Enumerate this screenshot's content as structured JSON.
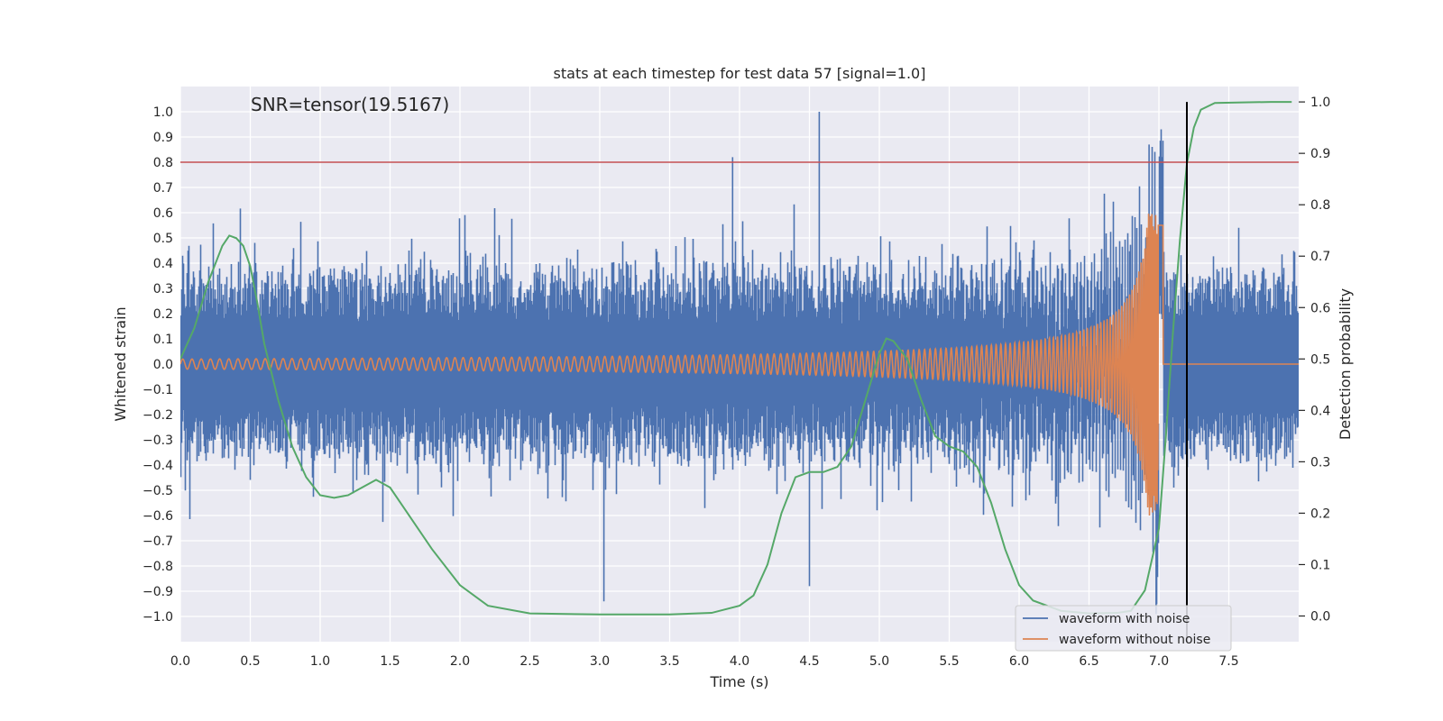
{
  "chart_data": {
    "type": "line",
    "title": "stats at each timestep for test data 57 [signal=1.0]",
    "xlabel": "Time (s)",
    "ylabel": "Whitened strain",
    "ylabel_right": "Detection probability",
    "annotation": "SNR=tensor(19.5167)",
    "xlim": [
      0.0,
      8.0
    ],
    "ylim": [
      -1.1,
      1.1
    ],
    "ylim_right": [
      -0.05,
      1.03
    ],
    "x_ticks": [
      0.0,
      0.5,
      1.0,
      1.5,
      2.0,
      2.5,
      3.0,
      3.5,
      4.0,
      4.5,
      5.0,
      5.5,
      6.0,
      6.5,
      7.0,
      7.5
    ],
    "x_tick_labels": [
      "0.0",
      "0.5",
      "1.0",
      "1.5",
      "2.0",
      "2.5",
      "3.0",
      "3.5",
      "4.0",
      "4.5",
      "5.0",
      "5.5",
      "6.0",
      "6.5",
      "7.0",
      "7.5"
    ],
    "y_ticks": [
      1.0,
      0.9,
      0.8,
      0.7,
      0.6,
      0.5,
      0.4,
      0.3,
      0.2,
      0.1,
      0.0,
      -0.1,
      -0.2,
      -0.3,
      -0.4,
      -0.5,
      -0.6,
      -0.7,
      -0.8,
      -0.9,
      -1.0
    ],
    "y_tick_labels": [
      "1.0",
      "0.9",
      "0.8",
      "0.7",
      "0.6",
      "0.5",
      "0.4",
      "0.3",
      "0.2",
      "0.1",
      "0.0",
      "−0.1",
      "−0.2",
      "−0.3",
      "−0.4",
      "−0.5",
      "−0.6",
      "−0.7",
      "−0.8",
      "−0.9",
      "−1.0"
    ],
    "y_right_ticks": [
      1.0,
      0.9,
      0.8,
      0.7,
      0.6,
      0.5,
      0.4,
      0.3,
      0.2,
      0.1,
      0.0
    ],
    "y_right_tick_labels": [
      "1.0",
      "0.9",
      "0.8",
      "0.7",
      "0.6",
      "0.5",
      "0.4",
      "0.3",
      "0.2",
      "0.1",
      "0.0"
    ],
    "threshold": {
      "y": 0.8,
      "color": "#c44e52"
    },
    "marker_line": {
      "x": 7.2,
      "color": "#000000"
    },
    "legend": {
      "position": "lower-right",
      "entries": [
        {
          "name": "waveform with noise",
          "color": "#4c72b0"
        },
        {
          "name": "waveform without noise",
          "color": "#dd8452"
        }
      ]
    },
    "series": [
      {
        "name": "waveform with noise",
        "color": "#4c72b0",
        "axis": "left",
        "description": "noise-dominated strain, typical envelope about +/-0.35 with spikes",
        "typical_amplitude": 0.35,
        "peaks": [
          {
            "x": 3.95,
            "y": 0.82
          },
          {
            "x": 4.57,
            "y": 1.0
          },
          {
            "x": 6.93,
            "y": 0.87
          },
          {
            "x": 3.03,
            "y": -0.94
          },
          {
            "x": 4.5,
            "y": -0.88
          },
          {
            "x": 6.98,
            "y": -0.99
          }
        ]
      },
      {
        "name": "waveform without noise",
        "color": "#dd8452",
        "axis": "left",
        "description": "chirp signal increasing in frequency and amplitude until merger near t=7.0",
        "start_amplitude": 0.02,
        "peak_amplitude": 0.6,
        "merger_time": 7.0,
        "start_frequency_hz": 15,
        "end_frequency_hz": 90
      },
      {
        "name": "detection probability",
        "color": "#55a868",
        "axis": "right",
        "x": [
          0.0,
          0.1,
          0.2,
          0.3,
          0.35,
          0.4,
          0.45,
          0.5,
          0.55,
          0.6,
          0.7,
          0.8,
          0.9,
          1.0,
          1.1,
          1.2,
          1.3,
          1.4,
          1.5,
          1.6,
          1.8,
          2.0,
          2.2,
          2.5,
          3.0,
          3.5,
          3.8,
          4.0,
          4.1,
          4.2,
          4.3,
          4.4,
          4.5,
          4.6,
          4.7,
          4.8,
          4.9,
          5.0,
          5.05,
          5.1,
          5.2,
          5.3,
          5.4,
          5.5,
          5.6,
          5.7,
          5.8,
          5.9,
          6.0,
          6.1,
          6.3,
          6.5,
          6.7,
          6.8,
          6.9,
          7.0,
          7.05,
          7.1,
          7.15,
          7.2,
          7.25,
          7.3,
          7.4,
          7.6,
          7.8,
          7.95
        ],
        "values": [
          0.5,
          0.56,
          0.65,
          0.72,
          0.74,
          0.735,
          0.72,
          0.68,
          0.61,
          0.53,
          0.42,
          0.33,
          0.27,
          0.235,
          0.23,
          0.235,
          0.25,
          0.265,
          0.25,
          0.21,
          0.13,
          0.06,
          0.02,
          0.005,
          0.003,
          0.003,
          0.006,
          0.02,
          0.04,
          0.1,
          0.2,
          0.27,
          0.28,
          0.28,
          0.29,
          0.33,
          0.42,
          0.51,
          0.54,
          0.535,
          0.5,
          0.42,
          0.35,
          0.33,
          0.32,
          0.29,
          0.22,
          0.13,
          0.06,
          0.03,
          0.01,
          0.005,
          0.006,
          0.01,
          0.05,
          0.17,
          0.35,
          0.55,
          0.73,
          0.88,
          0.95,
          0.985,
          0.998,
          0.999,
          1.0,
          1.0
        ]
      }
    ]
  }
}
